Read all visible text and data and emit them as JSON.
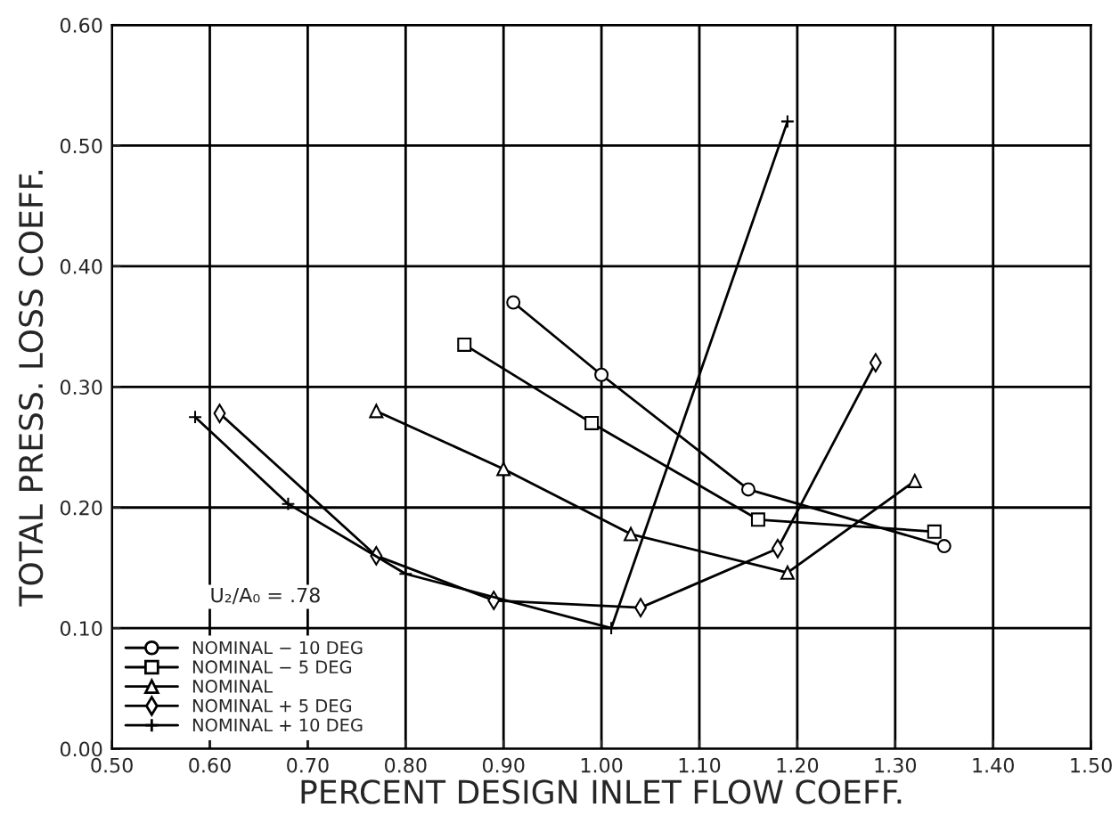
{
  "chart_data": {
    "type": "line",
    "xlabel": "PERCENT DESIGN INLET FLOW COEFF.",
    "ylabel": "TOTAL PRESS. LOSS COEFF.",
    "xlim": [
      0.5,
      1.5
    ],
    "xticks": [
      {
        "value": 0.5,
        "label": "0.50"
      },
      {
        "value": 0.6,
        "label": "0.60"
      },
      {
        "value": 0.7,
        "label": "0.70"
      },
      {
        "value": 0.8,
        "label": "0.80"
      },
      {
        "value": 0.9,
        "label": "0.90"
      },
      {
        "value": 1.0,
        "label": "1.00"
      },
      {
        "value": 1.1,
        "label": "1.10"
      },
      {
        "value": 1.2,
        "label": "1.20"
      },
      {
        "value": 1.3,
        "label": "1.30"
      },
      {
        "value": 1.4,
        "label": "1.40"
      },
      {
        "value": 1.5,
        "label": "1.50"
      }
    ],
    "ylim": [
      0,
      0.6
    ],
    "yticks": [
      {
        "value": 0,
        "label": "0.00"
      },
      {
        "value": 0.1,
        "label": "0.10"
      },
      {
        "value": 0.2,
        "label": "0.20"
      },
      {
        "value": 0.3,
        "label": "0.30"
      },
      {
        "value": 0.4,
        "label": "0.40"
      },
      {
        "value": 0.5,
        "label": "0.50"
      },
      {
        "value": 0.6,
        "label": "0.60"
      }
    ],
    "grid": true,
    "legend": "bottom left",
    "annotations": [
      "U₂/A₀ = .78"
    ],
    "series": [
      {
        "name": "NOMINAL − 10 DEG",
        "color": "#000000",
        "marker": "circle",
        "x": [
          0.91,
          1.0,
          1.15,
          1.35
        ],
        "values": [
          0.37,
          0.31,
          0.215,
          0.168
        ]
      },
      {
        "name": "NOMINAL − 5 DEG",
        "color": "#000000",
        "marker": "square",
        "x": [
          0.86,
          0.99,
          1.16,
          1.34
        ],
        "values": [
          0.335,
          0.27,
          0.19,
          0.18
        ]
      },
      {
        "name": "NOMINAL",
        "color": "#000000",
        "marker": "triangle",
        "x": [
          0.77,
          0.9,
          1.03,
          1.19,
          1.32
        ],
        "values": [
          0.28,
          0.232,
          0.178,
          0.146,
          0.222
        ]
      },
      {
        "name": "NOMINAL + 5 DEG",
        "color": "#000000",
        "marker": "diamond",
        "x": [
          0.61,
          0.77,
          0.89,
          1.04,
          1.18,
          1.28
        ],
        "values": [
          0.278,
          0.16,
          0.123,
          0.117,
          0.166,
          0.32
        ]
      },
      {
        "name": "NOMINAL + 10 DEG",
        "color": "#000000",
        "marker": "cross",
        "x": [
          0.585,
          0.68,
          0.8,
          1.01,
          1.19
        ],
        "values": [
          0.275,
          0.203,
          0.145,
          0.1,
          0.52
        ]
      }
    ]
  }
}
